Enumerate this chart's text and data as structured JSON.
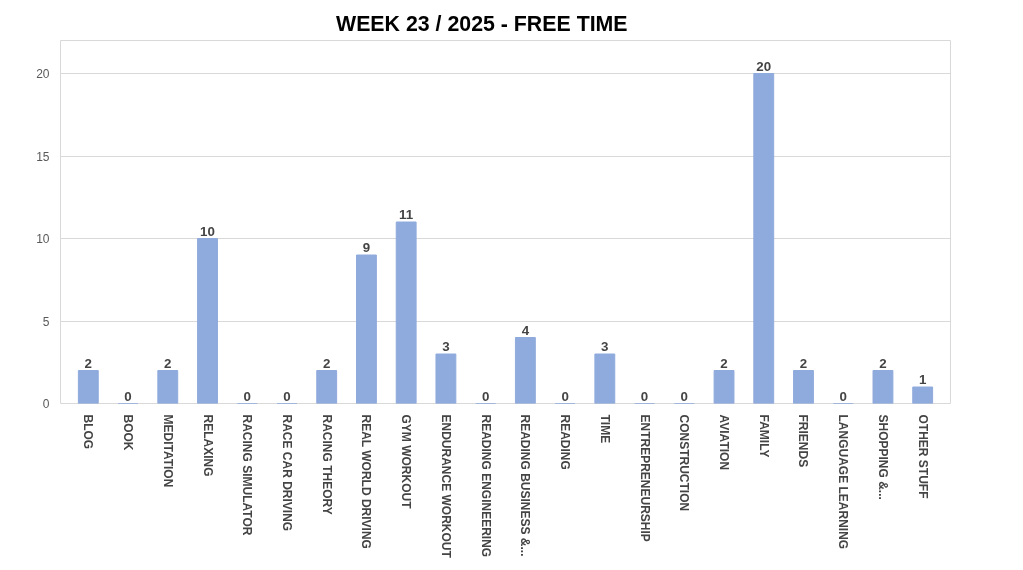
{
  "chart_data": {
    "type": "bar",
    "title": "WEEK   23  / 2025      - FREE TIME",
    "categories": [
      "BLOG",
      "BOOK",
      "MEDITATION",
      "RELAXING",
      "RACING SIMULATOR",
      "RACE CAR DRIVING",
      "RACING THEORY",
      "REAL WORLD DRIVING",
      "GYM WORKOUT",
      "ENDURANCE WORKOUT",
      "READING ENGINEERING",
      "READING BUSINESS &...",
      "READING",
      "TIME",
      "ENTREPRENEURSHIP",
      "CONSTRUCTION",
      "AVIATION",
      "FAMILY",
      "FRIENDS",
      "LANGUAGE LEARNING",
      "SHOPPING &...",
      "OTHER STUFF"
    ],
    "values": [
      2,
      0,
      2,
      10,
      0,
      0,
      2,
      9,
      11,
      3,
      0,
      4,
      0,
      3,
      0,
      0,
      2,
      20,
      2,
      0,
      2,
      1
    ],
    "color": "#8faadc",
    "ylim": [
      0,
      22
    ],
    "yticks": [
      0,
      5,
      10,
      15,
      20
    ],
    "grid": "y",
    "data_labels": true
  }
}
